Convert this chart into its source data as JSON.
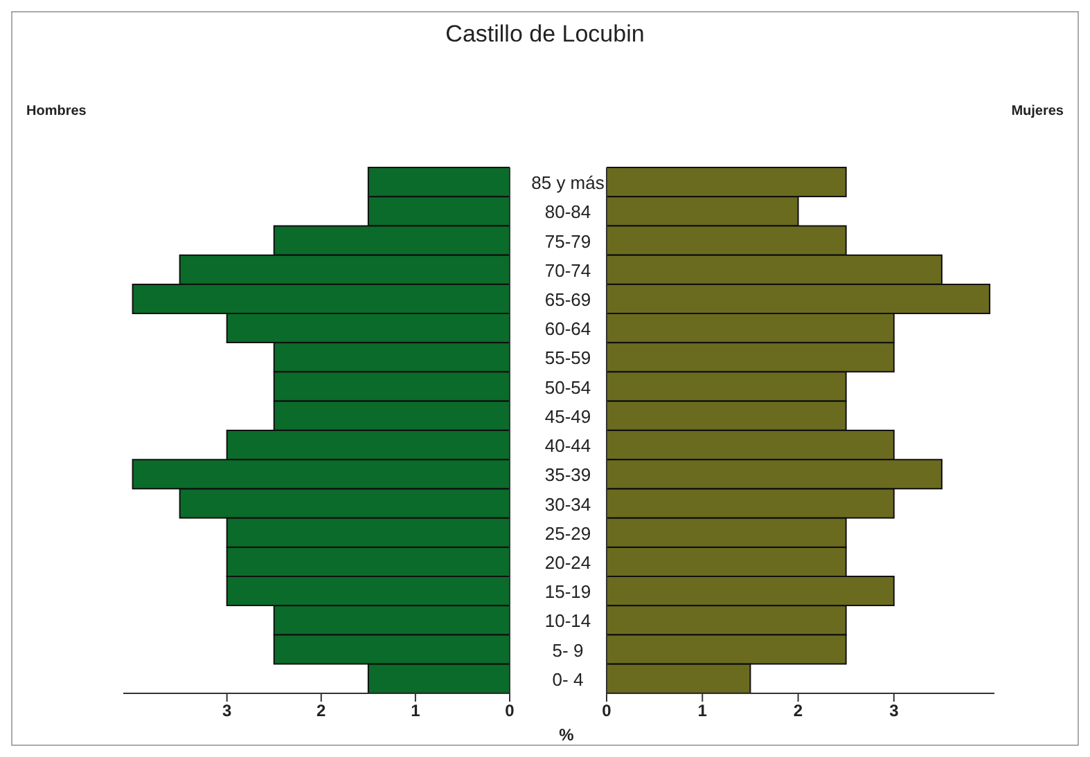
{
  "chart_data": [
    {
      "type": "bar",
      "orientation": "horizontal",
      "title": "Castillo de Locubin",
      "xlabel": "%",
      "categories": [
        "85 y más",
        "80-84",
        "75-79",
        "70-74",
        "65-69",
        "60-64",
        "55-59",
        "50-54",
        "45-49",
        "40-44",
        "35-39",
        "30-34",
        "25-29",
        "20-24",
        "15-19",
        "10-14",
        "5- 9",
        "0- 4"
      ],
      "series": [
        {
          "name": "Hombres",
          "color": "#0b6b2a",
          "values": [
            1.5,
            1.5,
            2.5,
            3.5,
            4.0,
            3.0,
            2.5,
            2.5,
            2.5,
            3.0,
            4.0,
            3.5,
            3.0,
            3.0,
            3.0,
            2.5,
            2.5,
            1.5
          ]
        }
      ],
      "xlim": [
        4.1,
        0
      ],
      "xticks": [
        3,
        2,
        1,
        0
      ],
      "grid": false,
      "legend": false
    },
    {
      "type": "bar",
      "orientation": "horizontal",
      "series": [
        {
          "name": "Mujeres",
          "color": "#6b6b1f",
          "values": [
            2.5,
            2.0,
            2.5,
            3.5,
            4.0,
            3.0,
            3.0,
            2.5,
            2.5,
            3.0,
            3.5,
            3.0,
            2.5,
            2.5,
            3.0,
            2.5,
            2.5,
            1.5
          ]
        }
      ],
      "xlim": [
        0,
        4.05
      ],
      "xticks": [
        0,
        1,
        2,
        3
      ],
      "grid": false,
      "legend": false,
      "tick_labels": "x"
    }
  ]
}
